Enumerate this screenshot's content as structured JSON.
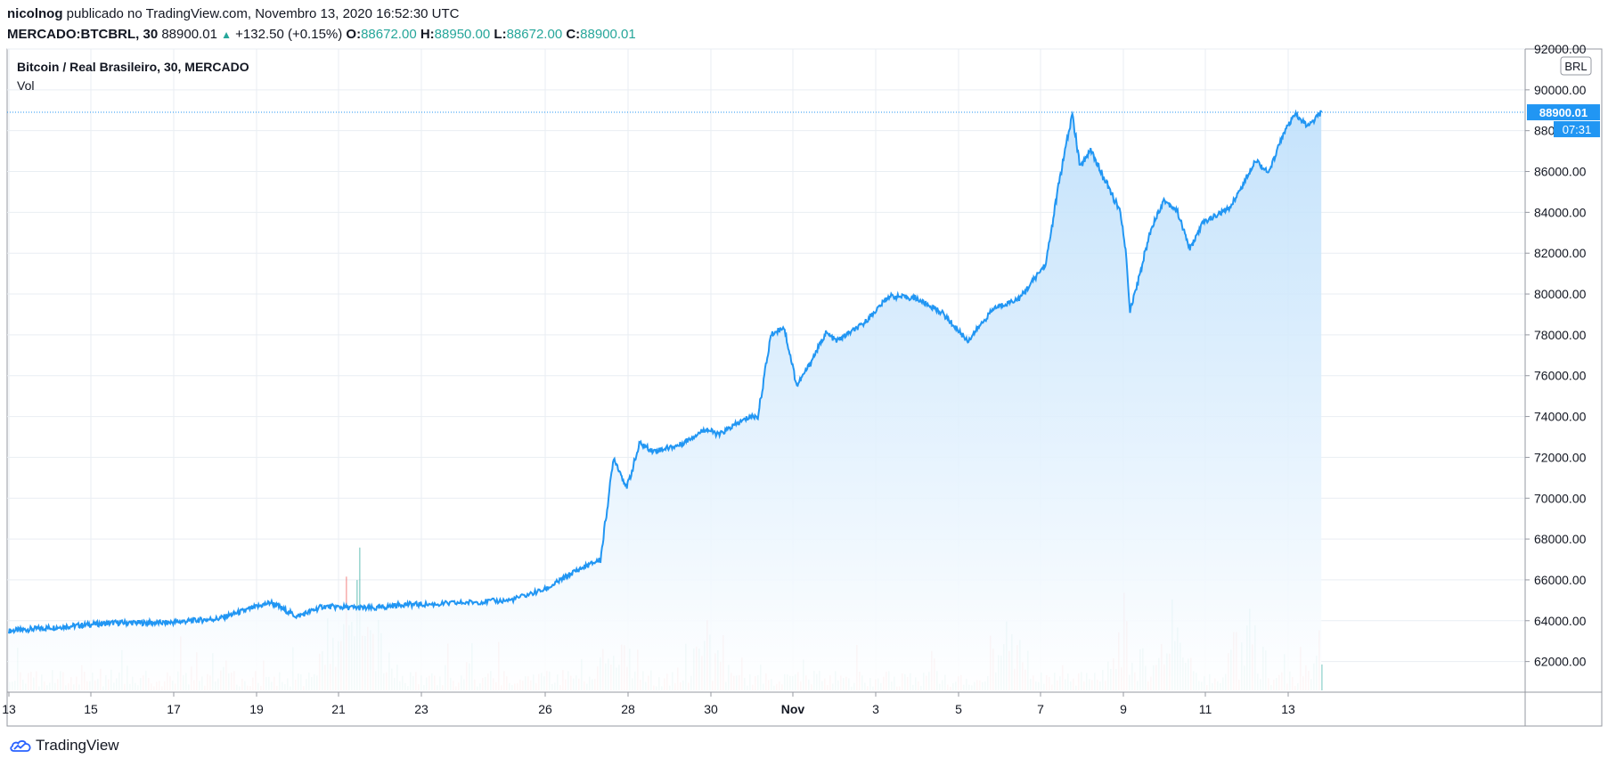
{
  "header": {
    "author": "nicolnog",
    "published": "publicado no TradingView.com, Novembro 13, 2020 16:52:30 UTC",
    "symbol": "MERCADO:BTCBRL, 30",
    "last": "88900.01",
    "change": "+132.50 (+0.15%)",
    "open_label": "O:",
    "open": "88672.00",
    "high_label": "H:",
    "high": "88950.00",
    "low_label": "L:",
    "low": "88672.00",
    "close_label": "C:",
    "close": "88900.01"
  },
  "legend": {
    "title": "Bitcoin / Real Brasileiro, 30, MERCADO",
    "vol": "Vol"
  },
  "currency_badge": "BRL",
  "price_tag": {
    "price": "88900.01",
    "countdown": "07:31"
  },
  "footer": {
    "brand": "TradingView",
    "icon": "tradingview-cloud-icon"
  },
  "colors": {
    "line": "#2196f3",
    "area_top": "#bbdefb",
    "volume_up": "#26a69a",
    "volume_down": "#ef5350",
    "grid": "#e9eef3",
    "axis_text": "#131722"
  },
  "chart_data": {
    "type": "area",
    "title": "Bitcoin / Real Brasileiro, 30, MERCADO",
    "x": [
      "13",
      "15",
      "17",
      "19",
      "21",
      "23",
      "26",
      "28",
      "30",
      "Nov",
      "3",
      "5",
      "7",
      "9",
      "11",
      "13"
    ],
    "x_ticks": [
      "13",
      "15",
      "17",
      "19",
      "21",
      "23",
      "26",
      "28",
      "30",
      "Nov",
      "3",
      "5",
      "7",
      "9",
      "11",
      "13"
    ],
    "y_ticks": [
      "92000.00",
      "90000.00",
      "88000.00",
      "86000.00",
      "84000.00",
      "82000.00",
      "80000.00",
      "78000.00",
      "76000.00",
      "74000.00",
      "72000.00",
      "70000.00",
      "68000.00",
      "66000.00",
      "64000.00",
      "62000.00"
    ],
    "ylim": [
      60500,
      92000
    ],
    "series": [
      {
        "values": [
          [
            0,
            63500
          ],
          [
            2,
            63700
          ],
          [
            4,
            63900
          ],
          [
            6,
            63900
          ],
          [
            8,
            64100
          ],
          [
            10,
            64900
          ],
          [
            11,
            64200
          ],
          [
            12,
            64700
          ],
          [
            14,
            64600
          ],
          [
            15,
            64800
          ],
          [
            16,
            64800
          ],
          [
            17,
            64900
          ],
          [
            18,
            65000
          ],
          [
            19,
            65600
          ],
          [
            20,
            66400
          ],
          [
            21,
            67000
          ],
          [
            21.5,
            72000
          ],
          [
            22,
            70500
          ],
          [
            22.5,
            72700
          ],
          [
            23,
            72300
          ],
          [
            24,
            72600
          ],
          [
            25,
            73400
          ],
          [
            25.5,
            73100
          ],
          [
            26,
            73500
          ],
          [
            26.7,
            74000
          ],
          [
            27,
            74000
          ],
          [
            27.5,
            78000
          ],
          [
            28,
            78400
          ],
          [
            28.5,
            75500
          ],
          [
            29,
            76600
          ],
          [
            29.6,
            78100
          ],
          [
            30,
            77700
          ],
          [
            31,
            78500
          ],
          [
            32,
            79900
          ],
          [
            33,
            79800
          ],
          [
            34,
            79100
          ],
          [
            35,
            77700
          ],
          [
            36,
            79300
          ],
          [
            37,
            79800
          ],
          [
            38,
            81500
          ],
          [
            38.5,
            85500
          ],
          [
            39,
            88800
          ],
          [
            39.3,
            86200
          ],
          [
            39.7,
            87100
          ],
          [
            40,
            86200
          ],
          [
            40.8,
            84100
          ],
          [
            41,
            82500
          ],
          [
            41.2,
            79200
          ],
          [
            41.5,
            80600
          ],
          [
            42,
            83200
          ],
          [
            42.5,
            84600
          ],
          [
            43,
            84100
          ],
          [
            43.5,
            82200
          ],
          [
            44,
            83500
          ],
          [
            45,
            84200
          ],
          [
            45.5,
            85300
          ],
          [
            46,
            86600
          ],
          [
            46.5,
            85900
          ],
          [
            47,
            87700
          ],
          [
            47.5,
            88800
          ],
          [
            48,
            88200
          ],
          [
            48.5,
            88900
          ]
        ]
      }
    ],
    "last_value": 88900.01,
    "volume_label": "Vol"
  }
}
